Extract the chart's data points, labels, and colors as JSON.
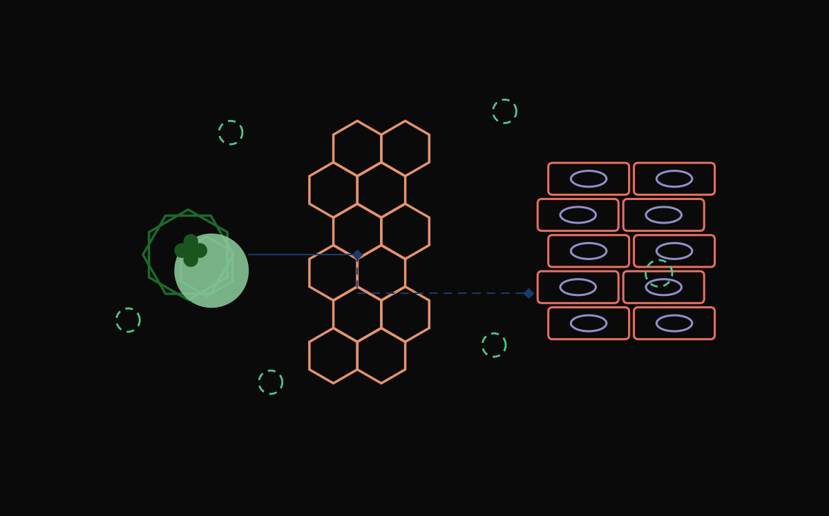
{
  "bg_color": "#0a0a0a",
  "orange_hex_color": "#e8936a",
  "green_dark_color": "#1a6b2a",
  "green_circle_color": "#8ecf9e",
  "salmon_color": "#e87060",
  "purple_color": "#9090cc",
  "navy_color": "#1a3a6a",
  "dashed_circle_color": "#4ecb8a",
  "line_color": "#1a3a6a",
  "fig_width": 12.0,
  "fig_height": 7.48,
  "dashed_circles": [
    [
      2.35,
      6.15,
      0.22
    ],
    [
      0.42,
      2.62,
      0.22
    ],
    [
      3.1,
      1.45,
      0.22
    ],
    [
      7.5,
      6.55,
      0.22
    ],
    [
      7.3,
      2.15,
      0.22
    ],
    [
      10.4,
      3.5,
      0.25
    ]
  ]
}
